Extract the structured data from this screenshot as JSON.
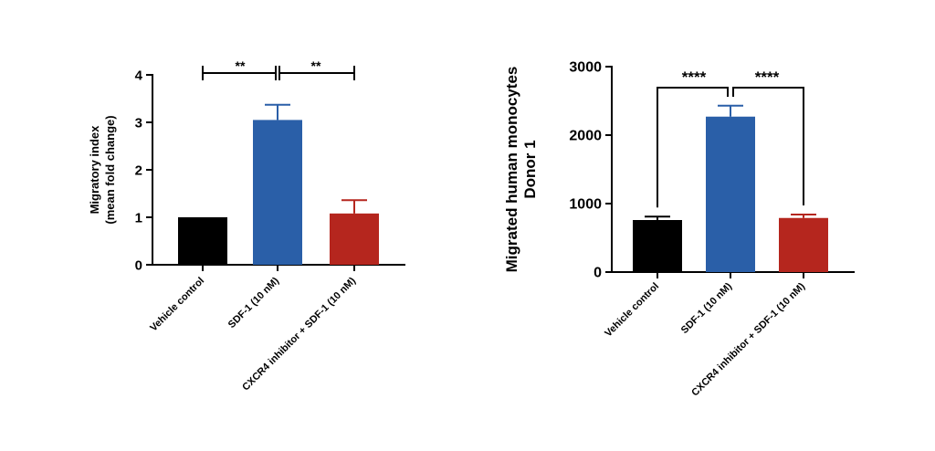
{
  "colors": {
    "vehicle": "#000000",
    "sdf1": "#2a5fa8",
    "inhibitor": "#b5261e"
  },
  "chart_data": [
    {
      "type": "bar",
      "title": "",
      "xlabel": "",
      "ylabel_lines": [
        "Migratory index",
        "(mean fold change)"
      ],
      "categories": [
        "Vehicle control",
        "SDF-1 (10 nM)",
        "CXCR4 inhibitor + SDF-1 (10 nM)"
      ],
      "values": [
        1.0,
        3.05,
        1.08
      ],
      "errors": [
        0,
        0.32,
        0.28
      ],
      "ylim": [
        0,
        4
      ],
      "yticks": [
        "0",
        "1",
        "2",
        "3",
        "4"
      ],
      "significance": [
        {
          "from": 0,
          "to": 1,
          "label": "**"
        },
        {
          "from": 1,
          "to": 2,
          "label": "**"
        }
      ]
    },
    {
      "type": "bar",
      "title": "",
      "xlabel": "",
      "ylabel_lines": [
        "Migrated human monocytes",
        "Donor 1"
      ],
      "categories": [
        "Vehicle control",
        "SDF-1 (10 nM)",
        "CXCR4 inhibitor + SDF-1 (10 nM)"
      ],
      "values": [
        760,
        2270,
        790
      ],
      "errors": [
        50,
        160,
        50
      ],
      "ylim": [
        0,
        3000
      ],
      "yticks": [
        "0",
        "1000",
        "2000",
        "3000"
      ],
      "significance": [
        {
          "from": 0,
          "to": 1,
          "label": "****"
        },
        {
          "from": 1,
          "to": 2,
          "label": "****"
        }
      ]
    }
  ]
}
